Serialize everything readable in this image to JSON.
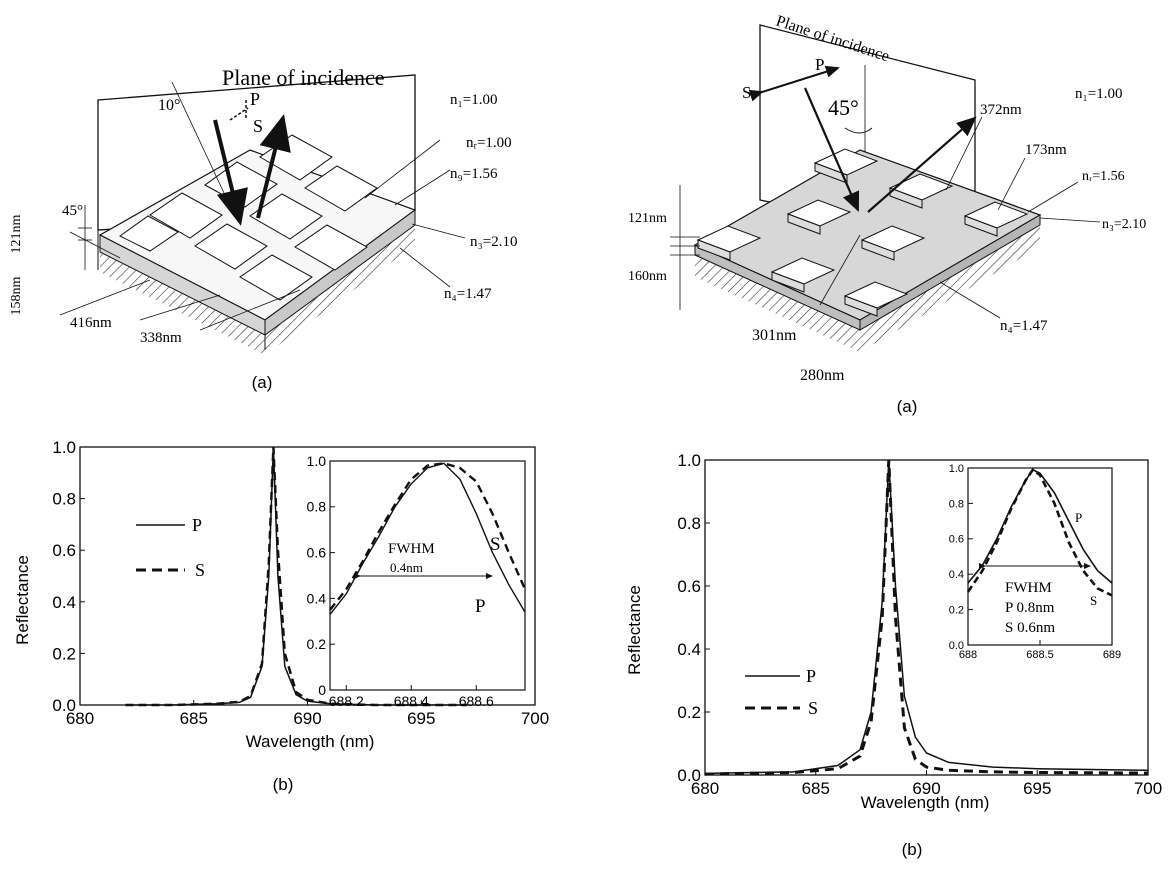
{
  "left": {
    "diagram": {
      "plane_label": "Plane of incidence",
      "angle_top": "10°",
      "angle_side": "45°",
      "pol_p": "P",
      "pol_s": "S",
      "n1": "n₁=1.00",
      "nr": "nᵣ=1.00",
      "ng": "n₉=1.56",
      "n3": "n₃=2.10",
      "n4": "n₄=1.47",
      "dim_121": "121nm",
      "dim_158": "158nm",
      "dim_416": "416nm",
      "dim_338": "338nm",
      "caption": "(a)"
    },
    "chart": {
      "caption": "(b)",
      "ylabel": "Reflectance",
      "xlabel": "Wavelength (nm)",
      "legend": [
        {
          "key": "P",
          "style": "solid"
        },
        {
          "key": "S",
          "style": "dashed"
        }
      ],
      "inset": {
        "label_fwhm": "FWHM",
        "label_value": "0.4nm",
        "label_s": "S",
        "label_p": "P"
      }
    }
  },
  "right": {
    "diagram": {
      "plane_label": "Plane of incidence",
      "angle": "45°",
      "pol_p": "P",
      "pol_s": "S",
      "n1": "n₁=1.00",
      "nr": "nᵣ=1.56",
      "n3": "n₃=2.10",
      "n4": "n₄=1.47",
      "dim_372": "372nm",
      "dim_173": "173nm",
      "dim_121": "121nm",
      "dim_160": "160nm",
      "dim_301": "301nm",
      "dim_280": "280nm",
      "caption": "(a)"
    },
    "chart": {
      "caption": "(b)",
      "ylabel": "Reflectance",
      "xlabel": "Wavelength (nm)",
      "legend": [
        {
          "key": "P",
          "style": "solid"
        },
        {
          "key": "S",
          "style": "dashed"
        }
      ],
      "inset": {
        "label_fwhm": "FWHM",
        "label_p": "P 0.8nm",
        "label_s": "S 0.6nm",
        "curve_p": "P",
        "curve_s": "S"
      }
    }
  },
  "chart_data": [
    {
      "type": "line",
      "xlabel": "Wavelength (nm)",
      "ylabel": "Reflectance",
      "xlim": [
        680,
        700
      ],
      "ylim": [
        0,
        1.0
      ],
      "xticks": [
        "680",
        "685",
        "690",
        "695",
        "700"
      ],
      "yticks": [
        "0.0",
        "0.2",
        "0.4",
        "0.6",
        "0.8",
        "1.0"
      ],
      "series": [
        {
          "name": "P",
          "style": "solid",
          "x": [
            682,
            684,
            686,
            687,
            687.5,
            688,
            688.3,
            688.5,
            688.7,
            689,
            689.5,
            690,
            691,
            693,
            695,
            697
          ],
          "y": [
            0.0,
            0.0,
            0.005,
            0.01,
            0.03,
            0.15,
            0.5,
            1.0,
            0.5,
            0.15,
            0.04,
            0.015,
            0.005,
            0.0,
            0.0,
            0.0
          ]
        },
        {
          "name": "S",
          "style": "dashed",
          "x": [
            682,
            684,
            686,
            687,
            687.5,
            688,
            688.3,
            688.5,
            688.7,
            689,
            689.5,
            690,
            691,
            693,
            695,
            697
          ],
          "y": [
            0.0,
            0.0,
            0.005,
            0.012,
            0.035,
            0.16,
            0.55,
            1.0,
            0.6,
            0.2,
            0.05,
            0.02,
            0.005,
            0.0,
            0.0,
            0.0
          ]
        }
      ]
    },
    {
      "type": "line",
      "xlim": [
        688.15,
        688.75
      ],
      "ylim": [
        0,
        1.0
      ],
      "xticks": [
        "688.2",
        "688.4",
        "688.6"
      ],
      "yticks": [
        "0",
        "0.2",
        "0.4",
        "0.6",
        "0.8",
        "1.0"
      ],
      "series": [
        {
          "name": "P",
          "style": "solid",
          "x": [
            688.15,
            688.2,
            688.25,
            688.3,
            688.35,
            688.4,
            688.45,
            688.5,
            688.55,
            688.6,
            688.65,
            688.7,
            688.75
          ],
          "y": [
            0.33,
            0.42,
            0.55,
            0.67,
            0.8,
            0.9,
            0.97,
            0.99,
            0.92,
            0.77,
            0.6,
            0.46,
            0.34
          ]
        },
        {
          "name": "S",
          "style": "dashed",
          "x": [
            688.15,
            688.2,
            688.25,
            688.3,
            688.35,
            688.4,
            688.45,
            688.5,
            688.55,
            688.6,
            688.65,
            688.7,
            688.75
          ],
          "y": [
            0.35,
            0.44,
            0.56,
            0.69,
            0.81,
            0.92,
            0.98,
            0.99,
            0.97,
            0.91,
            0.77,
            0.6,
            0.44
          ]
        }
      ]
    },
    {
      "type": "line",
      "xlabel": "Wavelength (nm)",
      "ylabel": "Reflectance",
      "xlim": [
        680,
        700
      ],
      "ylim": [
        0,
        1.0
      ],
      "xticks": [
        "680",
        "685",
        "690",
        "695",
        "700"
      ],
      "yticks": [
        "0.0",
        "0.2",
        "0.4",
        "0.6",
        "0.8",
        "1.0"
      ],
      "series": [
        {
          "name": "P",
          "style": "solid",
          "x": [
            680,
            684,
            686,
            687,
            687.5,
            688,
            688.3,
            688.6,
            689,
            689.5,
            690,
            691,
            693,
            695,
            700
          ],
          "y": [
            0.005,
            0.01,
            0.03,
            0.08,
            0.2,
            0.55,
            1.0,
            0.6,
            0.25,
            0.12,
            0.07,
            0.04,
            0.025,
            0.02,
            0.015
          ]
        },
        {
          "name": "S",
          "style": "dashed",
          "x": [
            680,
            684,
            686,
            687,
            687.5,
            688,
            688.3,
            688.6,
            689,
            689.5,
            690,
            691,
            693,
            695,
            700
          ],
          "y": [
            0.003,
            0.008,
            0.02,
            0.06,
            0.17,
            0.5,
            1.0,
            0.5,
            0.15,
            0.05,
            0.025,
            0.015,
            0.01,
            0.008,
            0.006
          ]
        }
      ]
    },
    {
      "type": "line",
      "xlim": [
        688,
        689
      ],
      "ylim": [
        0,
        1.0
      ],
      "xticks": [
        "688",
        "688.5",
        "689"
      ],
      "yticks": [
        "0.0",
        "0.2",
        "0.4",
        "0.6",
        "0.8",
        "1.0"
      ],
      "series": [
        {
          "name": "P",
          "style": "solid",
          "x": [
            688,
            688.1,
            688.2,
            688.3,
            688.4,
            688.45,
            688.5,
            688.6,
            688.7,
            688.8,
            688.9,
            689
          ],
          "y": [
            0.35,
            0.45,
            0.6,
            0.78,
            0.93,
            0.99,
            0.97,
            0.86,
            0.7,
            0.54,
            0.42,
            0.35
          ]
        },
        {
          "name": "S",
          "style": "dashed",
          "x": [
            688,
            688.1,
            688.2,
            688.3,
            688.4,
            688.45,
            688.5,
            688.6,
            688.7,
            688.8,
            688.9,
            689
          ],
          "y": [
            0.3,
            0.42,
            0.58,
            0.77,
            0.93,
            0.99,
            0.96,
            0.8,
            0.58,
            0.42,
            0.32,
            0.28
          ]
        }
      ]
    }
  ]
}
